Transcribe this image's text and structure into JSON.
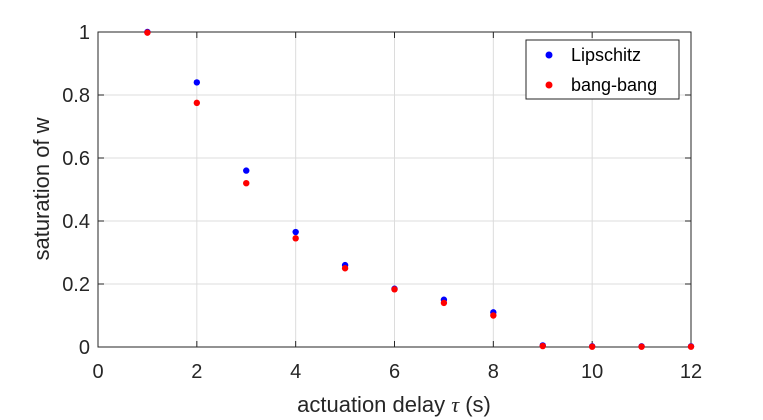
{
  "chart_data": {
    "type": "scatter",
    "xlabel_prefix": "actuation delay ",
    "xlabel_symbol": "τ",
    "xlabel_suffix": " (s)",
    "ylabel": "saturation of w",
    "xlim": [
      0,
      12
    ],
    "ylim": [
      0,
      1
    ],
    "x_ticks": [
      "0",
      "2",
      "4",
      "6",
      "8",
      "10",
      "12"
    ],
    "y_ticks": [
      "0",
      "0.2",
      "0.4",
      "0.6",
      "0.8",
      "1"
    ],
    "grid": true,
    "legend_position": "top-right",
    "series": [
      {
        "name": "Lipschitz",
        "color": "#0000ff",
        "points": [
          [
            1,
            1.0
          ],
          [
            2,
            0.84
          ],
          [
            3,
            0.56
          ],
          [
            4,
            0.365
          ],
          [
            5,
            0.26
          ],
          [
            6,
            0.185
          ],
          [
            7,
            0.15
          ],
          [
            8,
            0.11
          ],
          [
            9,
            0.005
          ],
          [
            10,
            0.002
          ],
          [
            11,
            0.002
          ],
          [
            12,
            0.002
          ]
        ]
      },
      {
        "name": "bang-bang",
        "color": "#ff0000",
        "points": [
          [
            1,
            0.998
          ],
          [
            2,
            0.775
          ],
          [
            3,
            0.52
          ],
          [
            4,
            0.345
          ],
          [
            5,
            0.25
          ],
          [
            6,
            0.183
          ],
          [
            7,
            0.14
          ],
          [
            8,
            0.1
          ],
          [
            9,
            0.003
          ],
          [
            10,
            0.001
          ],
          [
            11,
            0.001
          ],
          [
            12,
            0.001
          ]
        ]
      }
    ]
  }
}
